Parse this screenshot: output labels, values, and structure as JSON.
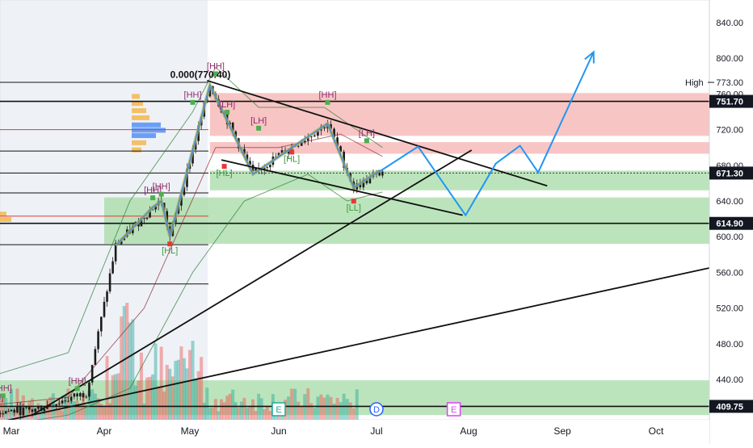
{
  "chart_data": {
    "type": "candlestick",
    "y_axis": {
      "position": "right",
      "ticks": [
        840,
        800,
        760,
        720,
        680,
        640,
        600,
        560,
        520,
        480,
        440
      ],
      "range": [
        380,
        866
      ]
    },
    "x_axis": {
      "ticks": [
        "Mar",
        "Apr",
        "May",
        "Jun",
        "Jul",
        "Aug",
        "Sep",
        "Oct"
      ]
    },
    "price_tags": [
      {
        "value": "751.70",
        "price": 751.7
      },
      {
        "value": "671.30",
        "price": 671.3
      },
      {
        "value": "614.90",
        "price": 614.9
      },
      {
        "value": "409.75",
        "price": 409.75
      }
    ],
    "high_marker": {
      "label": "High",
      "value": "773.00",
      "price": 773.0
    },
    "fib_label": "0.000(770.40)",
    "horizontal_levels": [
      773,
      751.7,
      720,
      696,
      671.3,
      649,
      623,
      614.9,
      591,
      547,
      409.75
    ],
    "zones": [
      {
        "type": "supply",
        "from_date": "2024-05-08",
        "to": "right-edge",
        "price_high": 761,
        "price_low": 713,
        "color": "#f6b2b2"
      },
      {
        "type": "supply",
        "from_date": "2024-05-08",
        "to": "right-edge",
        "price_high": 706,
        "price_low": 693,
        "color": "#f6b2b2"
      },
      {
        "type": "demand",
        "from_date": "2024-05-08",
        "to": "right-edge",
        "price_high": 674,
        "price_low": 652,
        "color": "#a6dba6"
      },
      {
        "type": "demand",
        "from_date": "2024-04-01",
        "to": "right-edge",
        "price_high": 644,
        "price_low": 592,
        "color": "#a6dba6"
      },
      {
        "type": "demand",
        "from_date": "2024-02-24",
        "to": "right-edge",
        "price_high": 439,
        "price_low": 400,
        "color": "#a6dba6"
      }
    ],
    "structure_labels": [
      {
        "text": "[HH]",
        "date": "2024-02-24",
        "price": 417,
        "kind": "high"
      },
      {
        "text": "[HH]",
        "date": "2024-02-27",
        "price": 427,
        "kind": "high"
      },
      {
        "text": "[HH]",
        "date": "2024-03-23",
        "price": 435,
        "kind": "high"
      },
      {
        "text": "[HH]",
        "date": "2024-04-18",
        "price": 649,
        "kind": "high"
      },
      {
        "text": "[HH]",
        "date": "2024-04-21",
        "price": 653,
        "kind": "high"
      },
      {
        "text": "[HL]",
        "date": "2024-04-24",
        "price": 581,
        "kind": "low"
      },
      {
        "text": "[HH]",
        "date": "2024-05-02",
        "price": 756,
        "kind": "high"
      },
      {
        "text": "[HH]",
        "date": "2024-05-10",
        "price": 788,
        "kind": "high"
      },
      {
        "text": "[LH]",
        "date": "2024-05-14",
        "price": 745,
        "kind": "high"
      },
      {
        "text": "[HL]",
        "date": "2024-05-13",
        "price": 668,
        "kind": "low"
      },
      {
        "text": "[LH]",
        "date": "2024-05-25",
        "price": 727,
        "kind": "high"
      },
      {
        "text": "[HL]",
        "date": "2024-06-05",
        "price": 684,
        "kind": "low"
      },
      {
        "text": "[HH]",
        "date": "2024-06-16",
        "price": 756,
        "kind": "high"
      },
      {
        "text": "[LH]",
        "date": "2024-06-28",
        "price": 713,
        "kind": "high"
      },
      {
        "text": "[LL]",
        "date": "2024-06-24",
        "price": 629,
        "kind": "low"
      }
    ],
    "event_markers": [
      {
        "text": "E",
        "date": "2024-06-01",
        "color": "#26a69a"
      },
      {
        "text": "D",
        "date": "2024-07-01",
        "color": "#2962ff"
      },
      {
        "text": "E",
        "date": "2024-07-27",
        "color": "#e040fb"
      }
    ],
    "trendlines": [
      {
        "from": {
          "date": "2024-05-07",
          "price": 775
        },
        "to": {
          "date": "2024-08-27",
          "price": 657
        }
      },
      {
        "from": {
          "date": "2024-05-12",
          "price": 686
        },
        "to": {
          "date": "2024-07-30",
          "price": 624
        }
      },
      {
        "from": {
          "date": "2024-03-08",
          "price": 400
        },
        "to": {
          "date": "2024-08-02",
          "price": 697
        }
      },
      {
        "from": {
          "date": "2024-02-21",
          "price": 389
        },
        "to": {
          "date": "2024-10-20",
          "price": 566
        }
      }
    ],
    "price_path": [
      {
        "date": "2024-04-05",
        "price": 590
      },
      {
        "date": "2024-04-18",
        "price": 633
      },
      {
        "date": "2024-04-21",
        "price": 640
      },
      {
        "date": "2024-04-24",
        "price": 600
      },
      {
        "date": "2024-05-08",
        "price": 770
      },
      {
        "date": "2024-05-23",
        "price": 670
      },
      {
        "date": "2024-06-16",
        "price": 727
      },
      {
        "date": "2024-06-24",
        "price": 655
      },
      {
        "date": "2024-07-02",
        "price": 674
      }
    ],
    "projection_path": [
      {
        "date": "2024-07-02",
        "price": 673
      },
      {
        "date": "2024-07-15",
        "price": 701
      },
      {
        "date": "2024-07-21",
        "price": 672
      },
      {
        "date": "2024-07-31",
        "price": 624
      },
      {
        "date": "2024-08-10",
        "price": 682
      },
      {
        "date": "2024-08-18",
        "price": 702
      },
      {
        "date": "2024-08-24",
        "price": 672
      },
      {
        "date": "2024-09-11",
        "price": 807
      }
    ]
  }
}
